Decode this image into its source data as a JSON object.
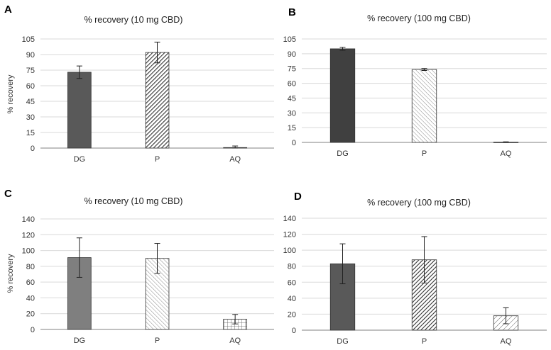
{
  "chart_data": [
    {
      "panel": "A",
      "type": "bar",
      "title": "% recovery  (10 mg CBD)",
      "ylabel": "% recovery",
      "xlabel": "",
      "categories": [
        "DG",
        "P",
        "AQ"
      ],
      "values": [
        73,
        92,
        0.5
      ],
      "errors": [
        6,
        10,
        1.5
      ],
      "ylim": [
        0,
        105
      ],
      "yticks": [
        0,
        15,
        30,
        45,
        60,
        75,
        90,
        105
      ],
      "grid": true,
      "fills": [
        "#595959",
        "pattern-dense-diag",
        "#595959"
      ]
    },
    {
      "panel": "B",
      "type": "bar",
      "title": "% recovery  (100 mg CBD)",
      "ylabel": "",
      "xlabel": "",
      "categories": [
        "DG",
        "P",
        "AQ"
      ],
      "values": [
        95,
        74,
        0.3
      ],
      "errors": [
        1.5,
        1,
        0.3
      ],
      "ylim": [
        0,
        105
      ],
      "yticks": [
        0,
        15,
        30,
        45,
        60,
        75,
        90,
        105
      ],
      "grid": true,
      "fills": [
        "#404040",
        "pattern-light-diag",
        "#404040"
      ]
    },
    {
      "panel": "C",
      "type": "bar",
      "title": "% recovery  (10 mg CBD)",
      "ylabel": "% recovery",
      "xlabel": "",
      "categories": [
        "DG",
        "P",
        "AQ"
      ],
      "values": [
        91,
        90,
        13
      ],
      "errors": [
        25,
        19,
        6
      ],
      "ylim": [
        0,
        140
      ],
      "yticks": [
        0,
        20,
        40,
        60,
        80,
        100,
        120,
        140
      ],
      "grid": true,
      "fills": [
        "#7f7f7f",
        "pattern-light-diag",
        "pattern-grid"
      ]
    },
    {
      "panel": "D",
      "type": "bar",
      "title": "% recovery  (100 mg CBD)",
      "ylabel": "",
      "xlabel": "",
      "categories": [
        "DG",
        "P",
        "AQ"
      ],
      "values": [
        83,
        88,
        18
      ],
      "errors": [
        25,
        29,
        10
      ],
      "ylim": [
        0,
        140
      ],
      "yticks": [
        0,
        20,
        40,
        60,
        80,
        100,
        120,
        140
      ],
      "grid": true,
      "fills": [
        "#595959",
        "pattern-dense-diag",
        "pattern-cross-hatch"
      ]
    }
  ]
}
